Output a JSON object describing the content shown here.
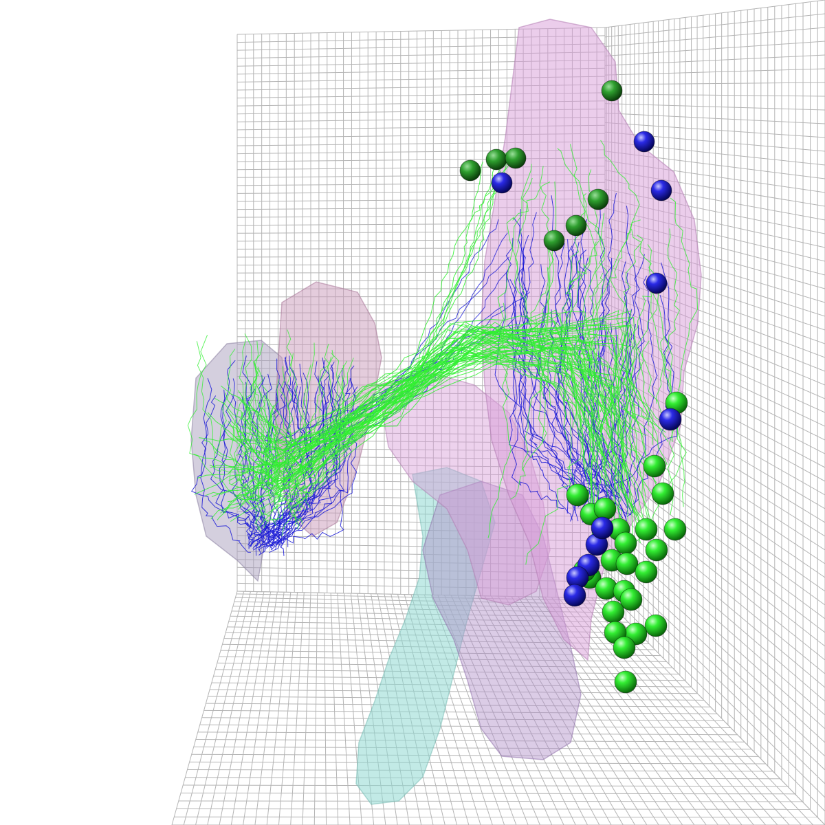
{
  "scene": {
    "colors": {
      "background": "#ffffff",
      "grid": "#b4b4b4",
      "mesh_pink": "#d79bd7",
      "mesh_purple": "#a78fc0",
      "mesh_cyan": "#8fd9d2",
      "trace_green": "#2ff02f",
      "trace_blue": "#1a1ad6",
      "soma_green": "#22dd22",
      "soma_blue": "#1e1ed8"
    },
    "neurons": {
      "green_trace_count": 60,
      "blue_trace_count": 45
    }
  }
}
